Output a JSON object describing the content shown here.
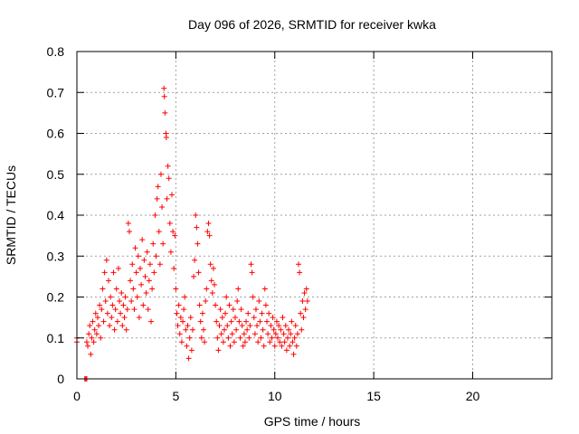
{
  "chart_data": {
    "type": "scatter",
    "title": "Day 096 of 2026, SRMTID for receiver kwka",
    "xlabel": "GPS time / hours",
    "ylabel": "SRMTID / TECUs",
    "xlim": [
      0,
      24
    ],
    "ylim": [
      0,
      0.8
    ],
    "xticks": [
      0,
      5,
      10,
      15,
      20
    ],
    "xtick_labels": [
      "0",
      "5",
      "10",
      "15",
      "20"
    ],
    "yticks": [
      0,
      0.1,
      0.2,
      0.3,
      0.4,
      0.5,
      0.6,
      0.7,
      0.8
    ],
    "ytick_labels": [
      "0",
      "0.1",
      "0.2",
      "0.3",
      "0.4",
      "0.5",
      "0.6",
      "0.7",
      "0.8"
    ],
    "grid": true,
    "marker": "+",
    "series": [
      {
        "name": "SRMTID",
        "color": "#ff0000",
        "points": [
          [
            0.0,
            0.09
          ],
          [
            0.0,
            0.1
          ],
          [
            0.4,
            0.0
          ],
          [
            0.45,
            0.0
          ],
          [
            0.5,
            0.0
          ],
          [
            0.5,
            0.09
          ],
          [
            0.55,
            0.08
          ],
          [
            0.6,
            0.11
          ],
          [
            0.65,
            0.13
          ],
          [
            0.7,
            0.06
          ],
          [
            0.75,
            0.1
          ],
          [
            0.8,
            0.14
          ],
          [
            0.85,
            0.09
          ],
          [
            0.9,
            0.12
          ],
          [
            0.95,
            0.16
          ],
          [
            1.0,
            0.11
          ],
          [
            1.05,
            0.15
          ],
          [
            1.1,
            0.13
          ],
          [
            1.15,
            0.18
          ],
          [
            1.2,
            0.1
          ],
          [
            1.25,
            0.17
          ],
          [
            1.3,
            0.22
          ],
          [
            1.35,
            0.14
          ],
          [
            1.4,
            0.26
          ],
          [
            1.45,
            0.19
          ],
          [
            1.5,
            0.29
          ],
          [
            1.55,
            0.16
          ],
          [
            1.6,
            0.24
          ],
          [
            1.65,
            0.13
          ],
          [
            1.7,
            0.2
          ],
          [
            1.75,
            0.15
          ],
          [
            1.8,
            0.18
          ],
          [
            1.85,
            0.26
          ],
          [
            1.9,
            0.12
          ],
          [
            1.95,
            0.17
          ],
          [
            2.0,
            0.22
          ],
          [
            2.05,
            0.14
          ],
          [
            2.1,
            0.27
          ],
          [
            2.15,
            0.19
          ],
          [
            2.2,
            0.16
          ],
          [
            2.25,
            0.21
          ],
          [
            2.3,
            0.13
          ],
          [
            2.35,
            0.18
          ],
          [
            2.4,
            0.15
          ],
          [
            2.45,
            0.2
          ],
          [
            2.5,
            0.12
          ],
          [
            2.55,
            0.17
          ],
          [
            2.6,
            0.38
          ],
          [
            2.65,
            0.36
          ],
          [
            2.7,
            0.24
          ],
          [
            2.75,
            0.19
          ],
          [
            2.8,
            0.28
          ],
          [
            2.85,
            0.22
          ],
          [
            2.9,
            0.17
          ],
          [
            2.95,
            0.32
          ],
          [
            3.0,
            0.26
          ],
          [
            3.05,
            0.2
          ],
          [
            3.1,
            0.3
          ],
          [
            3.15,
            0.15
          ],
          [
            3.2,
            0.27
          ],
          [
            3.25,
            0.23
          ],
          [
            3.3,
            0.34
          ],
          [
            3.35,
            0.18
          ],
          [
            3.4,
            0.29
          ],
          [
            3.45,
            0.25
          ],
          [
            3.5,
            0.21
          ],
          [
            3.55,
            0.31
          ],
          [
            3.6,
            0.17
          ],
          [
            3.65,
            0.24
          ],
          [
            3.7,
            0.28
          ],
          [
            3.75,
            0.14
          ],
          [
            3.8,
            0.22
          ],
          [
            3.85,
            0.33
          ],
          [
            3.9,
            0.26
          ],
          [
            3.95,
            0.4
          ],
          [
            4.0,
            0.3
          ],
          [
            4.05,
            0.44
          ],
          [
            4.1,
            0.47
          ],
          [
            4.15,
            0.36
          ],
          [
            4.2,
            0.28
          ],
          [
            4.25,
            0.5
          ],
          [
            4.3,
            0.42
          ],
          [
            4.35,
            0.33
          ],
          [
            4.4,
            0.71
          ],
          [
            4.42,
            0.69
          ],
          [
            4.45,
            0.65
          ],
          [
            4.5,
            0.6
          ],
          [
            4.52,
            0.59
          ],
          [
            4.55,
            0.44
          ],
          [
            4.6,
            0.52
          ],
          [
            4.65,
            0.49
          ],
          [
            4.7,
            0.38
          ],
          [
            4.75,
            0.31
          ],
          [
            4.8,
            0.45
          ],
          [
            4.85,
            0.36
          ],
          [
            4.9,
            0.27
          ],
          [
            4.95,
            0.35
          ],
          [
            5.0,
            0.22
          ],
          [
            5.05,
            0.16
          ],
          [
            5.1,
            0.13
          ],
          [
            5.15,
            0.18
          ],
          [
            5.2,
            0.11
          ],
          [
            5.25,
            0.15
          ],
          [
            5.3,
            0.09
          ],
          [
            5.35,
            0.14
          ],
          [
            5.4,
            0.17
          ],
          [
            5.45,
            0.2
          ],
          [
            5.5,
            0.12
          ],
          [
            5.55,
            0.08
          ],
          [
            5.6,
            0.13
          ],
          [
            5.65,
            0.05
          ],
          [
            5.7,
            0.1
          ],
          [
            5.75,
            0.15
          ],
          [
            5.8,
            0.07
          ],
          [
            5.85,
            0.12
          ],
          [
            5.9,
            0.25
          ],
          [
            5.95,
            0.29
          ],
          [
            6.0,
            0.4
          ],
          [
            6.05,
            0.37
          ],
          [
            6.1,
            0.33
          ],
          [
            6.15,
            0.26
          ],
          [
            6.2,
            0.18
          ],
          [
            6.25,
            0.14
          ],
          [
            6.3,
            0.1
          ],
          [
            6.35,
            0.16
          ],
          [
            6.4,
            0.12
          ],
          [
            6.45,
            0.09
          ],
          [
            6.5,
            0.19
          ],
          [
            6.55,
            0.22
          ],
          [
            6.6,
            0.36
          ],
          [
            6.65,
            0.38
          ],
          [
            6.7,
            0.35
          ],
          [
            6.75,
            0.28
          ],
          [
            6.8,
            0.24
          ],
          [
            6.85,
            0.21
          ],
          [
            6.9,
            0.27
          ],
          [
            6.95,
            0.23
          ],
          [
            7.0,
            0.18
          ],
          [
            7.05,
            0.14
          ],
          [
            7.1,
            0.1
          ],
          [
            7.15,
            0.07
          ],
          [
            7.2,
            0.13
          ],
          [
            7.25,
            0.17
          ],
          [
            7.3,
            0.11
          ],
          [
            7.35,
            0.15
          ],
          [
            7.4,
            0.09
          ],
          [
            7.45,
            0.12
          ],
          [
            7.5,
            0.16
          ],
          [
            7.55,
            0.2
          ],
          [
            7.6,
            0.13
          ],
          [
            7.65,
            0.1
          ],
          [
            7.7,
            0.18
          ],
          [
            7.75,
            0.08
          ],
          [
            7.8,
            0.14
          ],
          [
            7.85,
            0.11
          ],
          [
            7.9,
            0.17
          ],
          [
            7.95,
            0.09
          ],
          [
            8.0,
            0.15
          ],
          [
            8.05,
            0.12
          ],
          [
            8.1,
            0.19
          ],
          [
            8.15,
            0.22
          ],
          [
            8.2,
            0.14
          ],
          [
            8.25,
            0.1
          ],
          [
            8.3,
            0.17
          ],
          [
            8.35,
            0.13
          ],
          [
            8.4,
            0.08
          ],
          [
            8.45,
            0.11
          ],
          [
            8.5,
            0.09
          ],
          [
            8.55,
            0.14
          ],
          [
            8.6,
            0.12
          ],
          [
            8.65,
            0.16
          ],
          [
            8.7,
            0.1
          ],
          [
            8.75,
            0.13
          ],
          [
            8.8,
            0.28
          ],
          [
            8.85,
            0.26
          ],
          [
            8.9,
            0.2
          ],
          [
            8.95,
            0.15
          ],
          [
            9.0,
            0.11
          ],
          [
            9.05,
            0.17
          ],
          [
            9.1,
            0.13
          ],
          [
            9.15,
            0.09
          ],
          [
            9.2,
            0.19
          ],
          [
            9.25,
            0.14
          ],
          [
            9.3,
            0.1
          ],
          [
            9.35,
            0.16
          ],
          [
            9.4,
            0.12
          ],
          [
            9.45,
            0.08
          ],
          [
            9.5,
            0.22
          ],
          [
            9.55,
            0.18
          ],
          [
            9.6,
            0.14
          ],
          [
            9.65,
            0.11
          ],
          [
            9.7,
            0.16
          ],
          [
            9.75,
            0.09
          ],
          [
            9.8,
            0.13
          ],
          [
            9.85,
            0.1
          ],
          [
            9.9,
            0.15
          ],
          [
            9.95,
            0.12
          ],
          [
            10.0,
            0.08
          ],
          [
            10.05,
            0.11
          ],
          [
            10.1,
            0.14
          ],
          [
            10.15,
            0.1
          ],
          [
            10.2,
            0.13
          ],
          [
            10.25,
            0.09
          ],
          [
            10.3,
            0.12
          ],
          [
            10.35,
            0.08
          ],
          [
            10.4,
            0.15
          ],
          [
            10.45,
            0.11
          ],
          [
            10.5,
            0.09
          ],
          [
            10.55,
            0.13
          ],
          [
            10.6,
            0.07
          ],
          [
            10.65,
            0.1
          ],
          [
            10.7,
            0.12
          ],
          [
            10.75,
            0.08
          ],
          [
            10.8,
            0.11
          ],
          [
            10.85,
            0.14
          ],
          [
            10.9,
            0.09
          ],
          [
            10.95,
            0.06
          ],
          [
            11.0,
            0.1
          ],
          [
            11.05,
            0.13
          ],
          [
            11.1,
            0.08
          ],
          [
            11.15,
            0.11
          ],
          [
            11.2,
            0.28
          ],
          [
            11.25,
            0.26
          ],
          [
            11.3,
            0.16
          ],
          [
            11.35,
            0.12
          ],
          [
            11.4,
            0.19
          ],
          [
            11.45,
            0.15
          ],
          [
            11.5,
            0.21
          ],
          [
            11.55,
            0.17
          ],
          [
            11.6,
            0.22
          ],
          [
            11.65,
            0.19
          ]
        ]
      }
    ]
  },
  "colors": {
    "marker": "#ff0000",
    "axis": "#000000",
    "grid": "#a0a0a0",
    "background": "#ffffff"
  }
}
